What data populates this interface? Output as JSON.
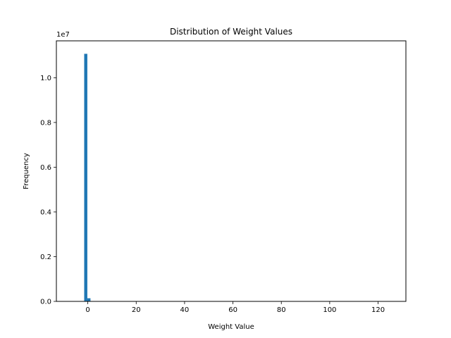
{
  "chart_data": {
    "type": "bar",
    "title": "Distribution of Weight Values",
    "xlabel": "Weight Value",
    "ylabel": "Frequency",
    "y_offset_text": "1e7",
    "x_ticks": [
      0,
      20,
      40,
      60,
      80,
      100,
      120
    ],
    "y_ticks": [
      0.0,
      0.2,
      0.4,
      0.6,
      0.8,
      1.0
    ],
    "y_tick_labels": [
      "0.0",
      "0.2",
      "0.4",
      "0.6",
      "0.8",
      "1.0"
    ],
    "xlim": [
      -13,
      131.5
    ],
    "ylim": [
      0,
      1.165
    ],
    "grid": false,
    "bar_color": "#1f77b4",
    "bins": [
      {
        "x0": -1.5,
        "x1": -0.2,
        "value": 1.107
      },
      {
        "x0": -0.2,
        "x1": 1.1,
        "value": 0.014
      }
    ]
  }
}
